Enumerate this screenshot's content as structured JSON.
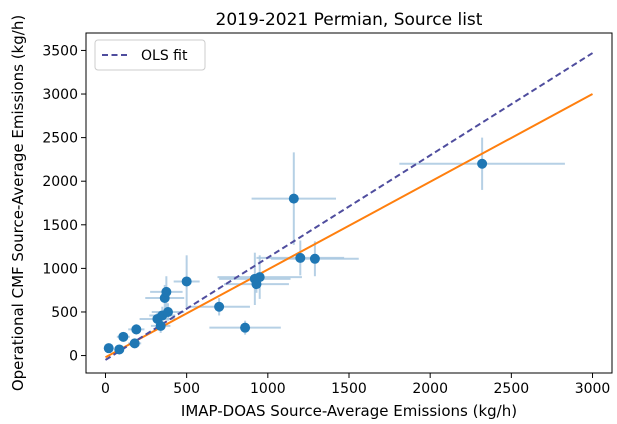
{
  "chart_data": {
    "type": "scatter",
    "title": "2019-2021 Permian, Source list",
    "xlabel": "IMAP-DOAS Source-Average Emissions (kg/h)",
    "ylabel": "Operational CMF Source-Average Emissions (kg/h)",
    "xlim": [
      -120,
      3120
    ],
    "ylim": [
      -200,
      3700
    ],
    "xticks": [
      0,
      500,
      1000,
      1500,
      2000,
      2500,
      3000
    ],
    "yticks": [
      0,
      500,
      1000,
      1500,
      2000,
      2500,
      3000,
      3500
    ],
    "grid": false,
    "legend_position": "top-left",
    "colors": {
      "points": "#1f77b4",
      "errorbars": "#a9c8e0",
      "ols_line": "#4f4d9e",
      "orange_line": "#ff7f0e"
    },
    "lines": [
      {
        "name": "OLS fit",
        "style": "dashed",
        "x": [
          0,
          3000
        ],
        "y": [
          -50,
          3470
        ]
      },
      {
        "name": "",
        "style": "solid",
        "x": [
          0,
          3000
        ],
        "y": [
          -20,
          3000
        ]
      }
    ],
    "points": [
      {
        "x": 20,
        "y": 85,
        "xerr": 0,
        "yerr": 0
      },
      {
        "x": 85,
        "y": 70,
        "xerr": 30,
        "yerr": 30
      },
      {
        "x": 110,
        "y": 215,
        "xerr": 40,
        "yerr": 50
      },
      {
        "x": 180,
        "y": 140,
        "xerr": 40,
        "yerr": 50
      },
      {
        "x": 190,
        "y": 300,
        "xerr": 50,
        "yerr": 60
      },
      {
        "x": 320,
        "y": 420,
        "xerr": 110,
        "yerr": 80
      },
      {
        "x": 340,
        "y": 340,
        "xerr": 60,
        "yerr": 80
      },
      {
        "x": 350,
        "y": 460,
        "xerr": 80,
        "yerr": 100
      },
      {
        "x": 365,
        "y": 660,
        "xerr": 120,
        "yerr": 150
      },
      {
        "x": 375,
        "y": 730,
        "xerr": 100,
        "yerr": 180
      },
      {
        "x": 385,
        "y": 500,
        "xerr": 100,
        "yerr": 100
      },
      {
        "x": 500,
        "y": 850,
        "xerr": 80,
        "yerr": 300
      },
      {
        "x": 700,
        "y": 560,
        "xerr": 190,
        "yerr": 100
      },
      {
        "x": 860,
        "y": 320,
        "xerr": 220,
        "yerr": 80
      },
      {
        "x": 920,
        "y": 880,
        "xerr": 220,
        "yerr": 300
      },
      {
        "x": 930,
        "y": 820,
        "xerr": 200,
        "yerr": 100
      },
      {
        "x": 950,
        "y": 900,
        "xerr": 260,
        "yerr": 250
      },
      {
        "x": 1160,
        "y": 1800,
        "xerr": 260,
        "yerr": 530
      },
      {
        "x": 1200,
        "y": 1120,
        "xerr": 270,
        "yerr": 200
      },
      {
        "x": 1290,
        "y": 1110,
        "xerr": 270,
        "yerr": 200
      },
      {
        "x": 2320,
        "y": 2200,
        "xerr": 510,
        "yerr": 300
      }
    ]
  }
}
